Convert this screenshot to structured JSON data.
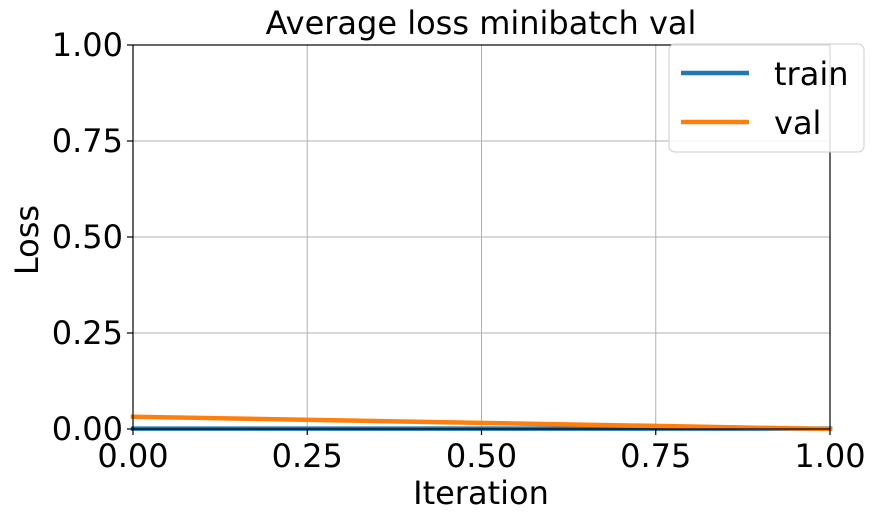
{
  "chart_data": {
    "type": "line",
    "title": "Average loss minibatch val",
    "xlabel": "Iteration",
    "ylabel": "Loss",
    "xlim": [
      0,
      1
    ],
    "ylim": [
      0,
      1
    ],
    "xticks": [
      0.0,
      0.25,
      0.5,
      0.75,
      1.0
    ],
    "xtick_labels": [
      "0.00",
      "0.25",
      "0.50",
      "0.75",
      "1.00"
    ],
    "yticks": [
      0.0,
      0.25,
      0.5,
      0.75,
      1.0
    ],
    "ytick_labels": [
      "0.00",
      "0.25",
      "0.50",
      "0.75",
      "1.00"
    ],
    "grid": true,
    "legend_position": "upper-right",
    "series": [
      {
        "name": "train",
        "color": "#1f77b4",
        "x": [
          0,
          1
        ],
        "y": [
          0.001,
          0.001
        ]
      },
      {
        "name": "val",
        "color": "#ff7f0e",
        "x": [
          0,
          1
        ],
        "y": [
          0.032,
          0.0
        ]
      }
    ]
  }
}
